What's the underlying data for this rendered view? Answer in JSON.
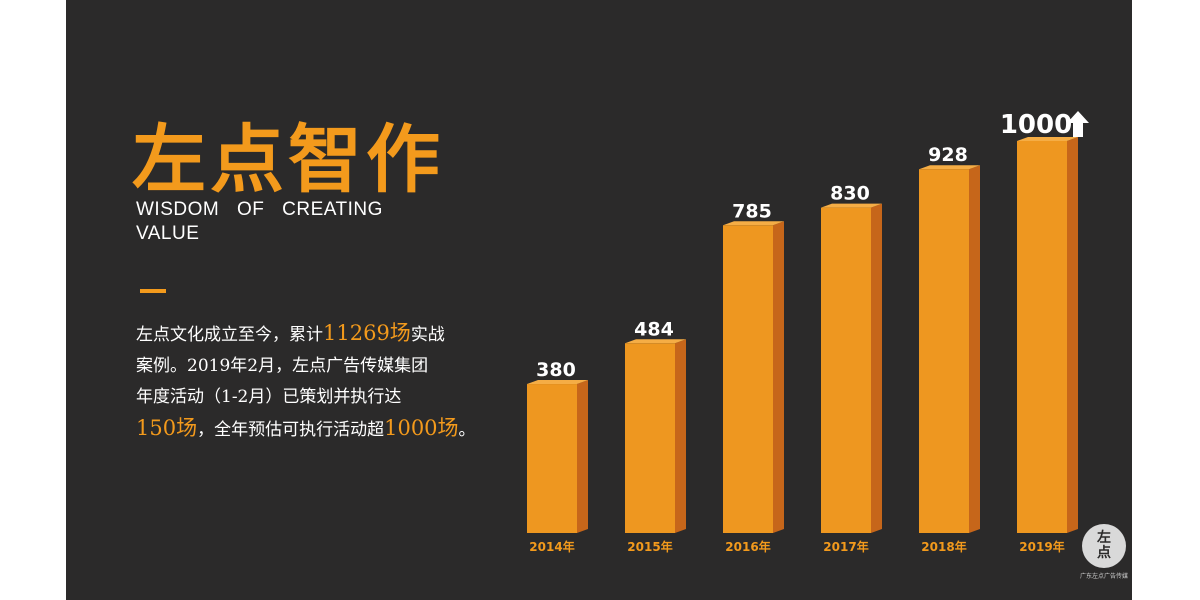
{
  "slide": {
    "title": "左点智作",
    "subtitle": "WISDOM OF CREATING VALUE",
    "description": {
      "line1": [
        "左点文化成立至今，累计",
        "11269场",
        "实战"
      ],
      "line2": [
        "案例。2019年2月，左点广告传媒集团"
      ],
      "line3": [
        "年度活动（1-2月）已策划并执行达"
      ],
      "line4": [
        "150场",
        "，全年预估可执行活动超",
        "1000场",
        "。"
      ]
    },
    "logo": {
      "mark_top": "左",
      "mark_bottom": "点",
      "caption": "广东左点广告传媒"
    },
    "colors": {
      "accent": "#f39a1c",
      "background": "#2b2a2a",
      "bar_front": "#ee9720",
      "bar_side": "#c6661a"
    }
  },
  "chart_data": {
    "type": "bar",
    "categories": [
      "2014年",
      "2015年",
      "2016年",
      "2017年",
      "2018年",
      "2019年"
    ],
    "values": [
      380,
      484,
      785,
      830,
      928,
      1000
    ],
    "value_labels": [
      "380",
      "484",
      "785",
      "830",
      "928",
      "1000"
    ],
    "last_value_marker": "up-arrow-icon",
    "ylim": [
      0,
      1000
    ],
    "grid": false,
    "legend": "none"
  }
}
